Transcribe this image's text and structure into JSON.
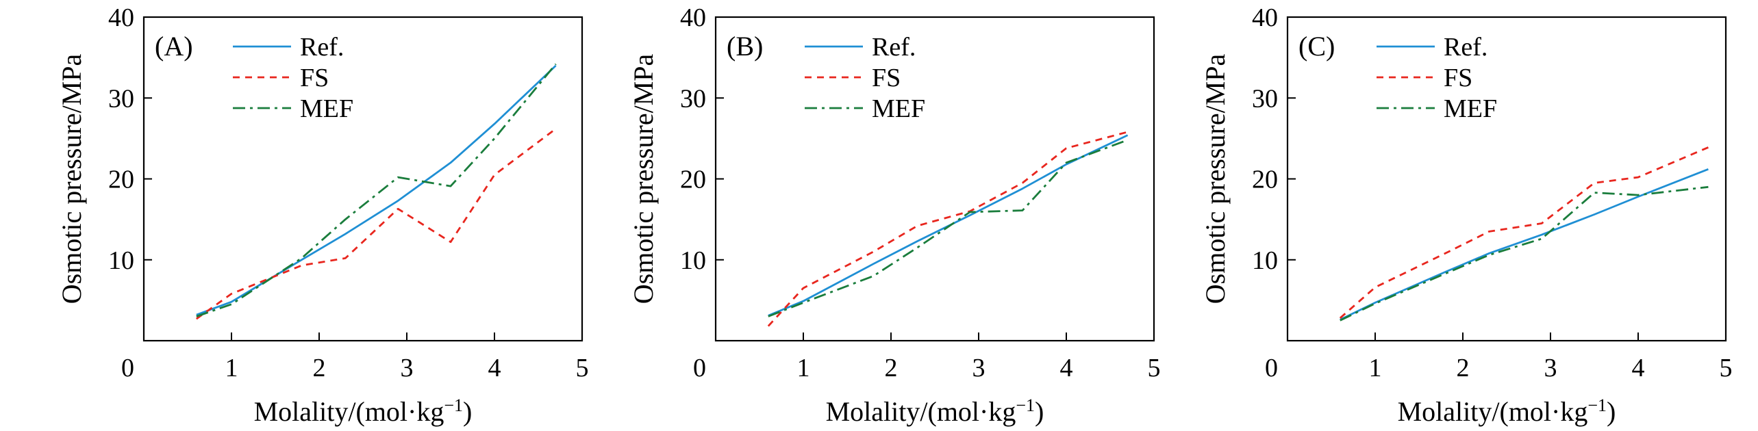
{
  "chart_data": [
    {
      "type": "line",
      "panel_label": "(A)",
      "xlabel": "Molality/(mol·kg",
      "xlabel_sup": "−1",
      "xlabel_close": ")",
      "ylabel": "Osmotic pressure/MPa",
      "xlim": [
        0,
        5
      ],
      "ylim": [
        0,
        40
      ],
      "x_ticks": [
        "0",
        "1",
        "2",
        "3",
        "4",
        "5"
      ],
      "y_ticks": [
        "10",
        "20",
        "30",
        "40"
      ],
      "legend_position": "top-left",
      "series": [
        {
          "name": "Ref.",
          "color": "#1f8fd4",
          "dash": "solid",
          "points": [
            [
              0.6,
              3.2
            ],
            [
              1.0,
              4.8
            ],
            [
              1.8,
              10.0
            ],
            [
              2.3,
              13.2
            ],
            [
              2.9,
              17.3
            ],
            [
              3.5,
              22.0
            ],
            [
              4.0,
              26.8
            ],
            [
              4.7,
              34.0
            ]
          ]
        },
        {
          "name": "FS",
          "color": "#e8261e",
          "dash": "dotted",
          "points": [
            [
              0.6,
              2.7
            ],
            [
              1.0,
              5.8
            ],
            [
              1.8,
              9.3
            ],
            [
              2.3,
              10.2
            ],
            [
              2.9,
              16.3
            ],
            [
              3.5,
              12.2
            ],
            [
              4.0,
              20.5
            ],
            [
              4.7,
              26.2
            ]
          ]
        },
        {
          "name": "MEF",
          "color": "#1a7d3c",
          "dash": "dashdot",
          "points": [
            [
              0.6,
              3.0
            ],
            [
              1.0,
              4.5
            ],
            [
              1.8,
              10.2
            ],
            [
              2.3,
              15.0
            ],
            [
              2.9,
              20.2
            ],
            [
              3.5,
              19.1
            ],
            [
              4.0,
              25.0
            ],
            [
              4.7,
              34.2
            ]
          ]
        }
      ]
    },
    {
      "type": "line",
      "panel_label": "(B)",
      "xlabel": "Molality/(mol·kg",
      "xlabel_sup": "−1",
      "xlabel_close": ")",
      "ylabel": "Osmotic pressure/MPa",
      "xlim": [
        0,
        5
      ],
      "ylim": [
        0,
        40
      ],
      "x_ticks": [
        "0",
        "1",
        "2",
        "3",
        "4",
        "5"
      ],
      "y_ticks": [
        "10",
        "20",
        "30",
        "40"
      ],
      "legend_position": "top-left",
      "series": [
        {
          "name": "Ref.",
          "color": "#1f8fd4",
          "dash": "solid",
          "points": [
            [
              0.6,
              3.1
            ],
            [
              1.0,
              4.9
            ],
            [
              1.8,
              9.5
            ],
            [
              2.3,
              12.3
            ],
            [
              2.9,
              15.5
            ],
            [
              3.5,
              18.8
            ],
            [
              4.0,
              21.8
            ],
            [
              4.7,
              25.4
            ]
          ]
        },
        {
          "name": "FS",
          "color": "#e8261e",
          "dash": "dotted",
          "points": [
            [
              0.6,
              1.8
            ],
            [
              1.0,
              6.5
            ],
            [
              1.8,
              11.0
            ],
            [
              2.3,
              14.2
            ],
            [
              2.9,
              16.0
            ],
            [
              3.5,
              19.5
            ],
            [
              4.0,
              23.8
            ],
            [
              4.7,
              25.8
            ]
          ]
        },
        {
          "name": "MEF",
          "color": "#1a7d3c",
          "dash": "dashdot",
          "points": [
            [
              0.6,
              3.0
            ],
            [
              1.0,
              4.7
            ],
            [
              1.8,
              8.0
            ],
            [
              2.3,
              11.5
            ],
            [
              2.9,
              15.9
            ],
            [
              3.5,
              16.1
            ],
            [
              4.0,
              22.0
            ],
            [
              4.7,
              24.8
            ]
          ]
        }
      ]
    },
    {
      "type": "line",
      "panel_label": "(C)",
      "xlabel": "Molality/(mol·kg",
      "xlabel_sup": "−1",
      "xlabel_close": ")",
      "ylabel": "Osmotic pressure/MPa",
      "xlim": [
        0,
        5
      ],
      "ylim": [
        0,
        40
      ],
      "x_ticks": [
        "0",
        "1",
        "2",
        "3",
        "4",
        "5"
      ],
      "y_ticks": [
        "10",
        "20",
        "30",
        "40"
      ],
      "legend_position": "top-left",
      "series": [
        {
          "name": "Ref.",
          "color": "#1f8fd4",
          "dash": "solid",
          "points": [
            [
              0.6,
              2.6
            ],
            [
              1.0,
              4.7
            ],
            [
              1.8,
              8.5
            ],
            [
              2.3,
              10.8
            ],
            [
              2.9,
              13.1
            ],
            [
              3.5,
              15.6
            ],
            [
              4.0,
              17.8
            ],
            [
              4.8,
              21.2
            ]
          ]
        },
        {
          "name": "FS",
          "color": "#e8261e",
          "dash": "dotted",
          "points": [
            [
              0.6,
              2.8
            ],
            [
              1.0,
              6.6
            ],
            [
              1.8,
              10.8
            ],
            [
              2.3,
              13.5
            ],
            [
              2.9,
              14.5
            ],
            [
              3.5,
              19.5
            ],
            [
              4.0,
              20.2
            ],
            [
              4.8,
              23.9
            ]
          ]
        },
        {
          "name": "MEF",
          "color": "#1a7d3c",
          "dash": "dashdot",
          "points": [
            [
              0.6,
              2.5
            ],
            [
              1.0,
              4.6
            ],
            [
              1.8,
              8.3
            ],
            [
              2.3,
              10.6
            ],
            [
              2.9,
              12.6
            ],
            [
              3.5,
              18.3
            ],
            [
              4.0,
              18.0
            ],
            [
              4.8,
              19.0
            ]
          ]
        }
      ]
    }
  ]
}
